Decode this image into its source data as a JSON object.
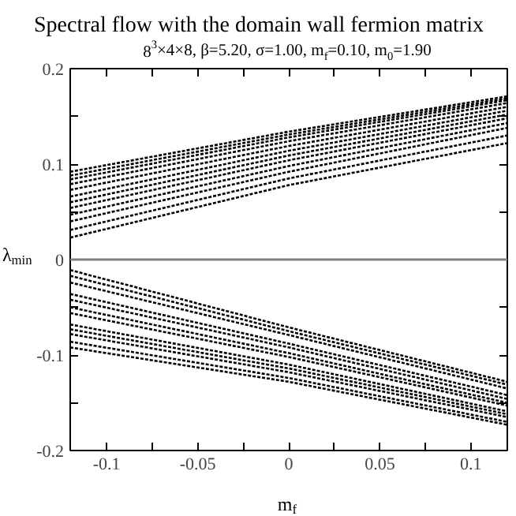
{
  "chart_data": {
    "type": "line",
    "title": "Spectral flow with the domain wall fermion matrix",
    "subtitle": "8$^{3}$×4×8, β=5.20, σ=1.00, m$_{f}$=0.10, m$_{0}$=1.90",
    "xlabel": "m$_{f}$",
    "ylabel": "λ$_{min}$",
    "x": [
      -0.12,
      0,
      0.12
    ],
    "xlim": [
      -0.12,
      0.12
    ],
    "ylim": [
      -0.2,
      0.2
    ],
    "xticks": [
      {
        "value": -0.1,
        "label": "-0.1"
      },
      {
        "value": -0.075,
        "label": null
      },
      {
        "value": -0.05,
        "label": "-0.05"
      },
      {
        "value": -0.025,
        "label": null
      },
      0,
      {
        "value": 0.025,
        "label": null
      },
      0.05,
      {
        "value": 0.075,
        "label": null
      },
      0.1
    ],
    "yticks": [
      {
        "value": -0.2,
        "label": "-0.2"
      },
      {
        "value": -0.15,
        "label": null
      },
      {
        "value": -0.1,
        "label": "-0.1"
      },
      {
        "value": -0.05,
        "label": null
      },
      0,
      {
        "value": 0.05,
        "label": null
      },
      0.1,
      {
        "value": 0.15,
        "label": null
      },
      0.2
    ],
    "line_style": "dotted",
    "grid": false,
    "ref_lines": [
      {
        "axis": "y",
        "value": 0,
        "color": "#808080",
        "line_style": "solid"
      }
    ],
    "series": [
      {
        "color": "#000000",
        "values": [
          0.092,
          0.134,
          0.171
        ]
      },
      {
        "color": "#000000",
        "values": [
          0.088,
          0.131,
          0.169
        ]
      },
      {
        "color": "#000000",
        "values": [
          0.084,
          0.128,
          0.167
        ]
      },
      {
        "color": "#000000",
        "values": [
          0.079,
          0.124,
          0.164
        ]
      },
      {
        "color": "#000000",
        "values": [
          0.073,
          0.119,
          0.16
        ]
      },
      {
        "color": "#000000",
        "values": [
          0.066,
          0.114,
          0.156
        ]
      },
      {
        "color": "#000000",
        "values": [
          0.06,
          0.109,
          0.152
        ]
      },
      {
        "color": "#000000",
        "values": [
          0.054,
          0.104,
          0.148
        ]
      },
      {
        "color": "#000000",
        "values": [
          0.047,
          0.098,
          0.143
        ]
      },
      {
        "color": "#000000",
        "values": [
          0.04,
          0.092,
          0.138
        ]
      },
      {
        "color": "#000000",
        "values": [
          0.031,
          0.085,
          0.13
        ]
      },
      {
        "color": "#000000",
        "values": [
          0.023,
          0.078,
          0.122
        ]
      },
      {
        "color": "#000000",
        "values": [
          -0.011,
          -0.071,
          -0.128
        ]
      },
      {
        "color": "#000000",
        "values": [
          -0.017,
          -0.075,
          -0.131
        ]
      },
      {
        "color": "#000000",
        "values": [
          -0.024,
          -0.079,
          -0.135
        ]
      },
      {
        "color": "#000000",
        "values": [
          -0.036,
          -0.088,
          -0.142
        ]
      },
      {
        "color": "#000000",
        "values": [
          -0.042,
          -0.092,
          -0.146
        ]
      },
      {
        "color": "#000000",
        "values": [
          -0.05,
          -0.098,
          -0.15
        ]
      },
      {
        "color": "#000000",
        "values": [
          -0.056,
          -0.102,
          -0.153
        ]
      },
      {
        "color": "#000000",
        "values": [
          -0.068,
          -0.11,
          -0.159
        ]
      },
      {
        "color": "#000000",
        "values": [
          -0.073,
          -0.114,
          -0.162
        ]
      },
      {
        "color": "#000000",
        "values": [
          -0.078,
          -0.118,
          -0.165
        ]
      },
      {
        "color": "#000000",
        "values": [
          -0.086,
          -0.124,
          -0.17
        ]
      },
      {
        "color": "#000000",
        "values": [
          -0.092,
          -0.128,
          -0.173
        ]
      }
    ]
  }
}
